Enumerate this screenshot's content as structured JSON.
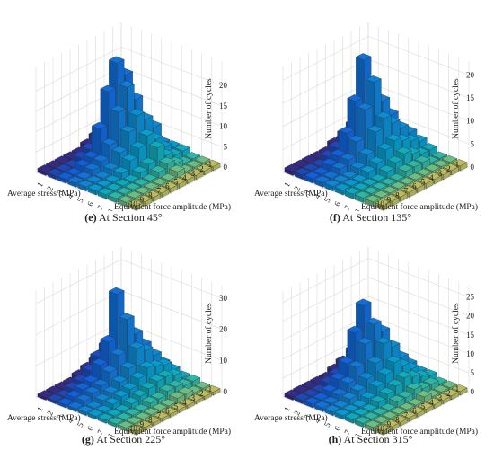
{
  "chart_data": [
    {
      "type": "bar3d",
      "panel_letter": "(e)",
      "caption": "At Section 45°",
      "zlabel": "Number of cycles",
      "xlabel": "Average stress (MPa)",
      "ylabel": "Equivalent force amplitude (MPa)",
      "x_ticks": [
        "1",
        "2",
        "3",
        "4",
        "5",
        "6",
        "7",
        "8",
        "9",
        "10"
      ],
      "y_ticks": [
        "1",
        "2",
        "3",
        "4",
        "5",
        "6",
        "7",
        "8",
        "9",
        "10"
      ],
      "z_ticks": [
        "0",
        "5",
        "10",
        "15",
        "20"
      ],
      "zlim": [
        0,
        26
      ],
      "values": [
        [
          1,
          2,
          2,
          2,
          2,
          2,
          2,
          1,
          1,
          1
        ],
        [
          1,
          3,
          6,
          3,
          7,
          3,
          2,
          1,
          1,
          1
        ],
        [
          2,
          4,
          19,
          14,
          10,
          6,
          3,
          2,
          1,
          1
        ],
        [
          3,
          6,
          23,
          18,
          12,
          8,
          6,
          3,
          2,
          1
        ],
        [
          2,
          5,
          17,
          13,
          9,
          6,
          3,
          2,
          1,
          1
        ],
        [
          1,
          3,
          9,
          6,
          5,
          4,
          2,
          1,
          1,
          1
        ],
        [
          1,
          2,
          3,
          3,
          2,
          2,
          1,
          1,
          1,
          1
        ],
        [
          1,
          1,
          2,
          2,
          1,
          1,
          1,
          1,
          1,
          1
        ],
        [
          1,
          1,
          1,
          1,
          1,
          1,
          1,
          1,
          1,
          1
        ],
        [
          1,
          1,
          1,
          1,
          1,
          1,
          1,
          1,
          1,
          1
        ]
      ]
    },
    {
      "type": "bar3d",
      "panel_letter": "(f)",
      "caption": "At Section 135°",
      "zlabel": "Number of cycles",
      "xlabel": "Average stress (MPa)",
      "ylabel": "Equivalent force amplitude (MPa)",
      "x_ticks": [
        "1",
        "2",
        "3",
        "4",
        "5",
        "6",
        "7",
        "8",
        "9",
        "10"
      ],
      "y_ticks": [
        "1",
        "2",
        "3",
        "4",
        "5",
        "6",
        "7",
        "8",
        "9",
        "10"
      ],
      "z_ticks": [
        "0",
        "5",
        "10",
        "15",
        "20"
      ],
      "zlim": [
        0,
        23
      ],
      "values": [
        [
          1,
          2,
          3,
          4,
          4,
          3,
          2,
          1,
          1,
          1
        ],
        [
          2,
          4,
          7,
          8,
          6,
          4,
          2,
          1,
          1,
          1
        ],
        [
          2,
          5,
          11,
          12,
          8,
          5,
          3,
          2,
          1,
          1
        ],
        [
          2,
          6,
          21,
          17,
          10,
          6,
          4,
          2,
          1,
          1
        ],
        [
          2,
          5,
          13,
          12,
          8,
          5,
          3,
          2,
          1,
          1
        ],
        [
          1,
          3,
          7,
          6,
          4,
          3,
          2,
          1,
          1,
          1
        ],
        [
          1,
          2,
          3,
          3,
          2,
          2,
          1,
          1,
          1,
          1
        ],
        [
          1,
          1,
          2,
          2,
          1,
          1,
          1,
          1,
          1,
          1
        ],
        [
          1,
          1,
          1,
          1,
          1,
          1,
          1,
          1,
          1,
          1
        ],
        [
          1,
          1,
          1,
          1,
          1,
          1,
          1,
          1,
          1,
          1
        ]
      ]
    },
    {
      "type": "bar3d",
      "panel_letter": "(g)",
      "caption": "At Section 225°",
      "zlabel": "Number of cycles",
      "xlabel": "Average stress (MPa)",
      "ylabel": "Equivalent force amplitude (MPa)",
      "x_ticks": [
        "1",
        "2",
        "3",
        "4",
        "5",
        "6",
        "7",
        "8",
        "9",
        "10"
      ],
      "y_ticks": [
        "1",
        "2",
        "3",
        "4",
        "5",
        "6",
        "7",
        "8",
        "9",
        "10"
      ],
      "z_ticks": [
        "0",
        "10",
        "20",
        "30"
      ],
      "zlim": [
        0,
        34
      ],
      "values": [
        [
          5,
          6,
          5,
          5,
          4,
          3,
          2,
          2,
          1,
          1
        ],
        [
          5,
          9,
          12,
          10,
          8,
          6,
          4,
          2,
          1,
          1
        ],
        [
          5,
          11,
          18,
          15,
          11,
          7,
          5,
          3,
          2,
          1
        ],
        [
          4,
          10,
          28,
          21,
          13,
          8,
          5,
          3,
          2,
          1
        ],
        [
          3,
          8,
          14,
          11,
          8,
          6,
          4,
          2,
          1,
          1
        ],
        [
          2,
          5,
          8,
          7,
          5,
          4,
          3,
          2,
          1,
          1
        ],
        [
          1,
          3,
          4,
          4,
          3,
          3,
          2,
          1,
          1,
          1
        ],
        [
          1,
          2,
          3,
          3,
          2,
          2,
          1,
          1,
          1,
          1
        ],
        [
          1,
          1,
          2,
          2,
          1,
          1,
          1,
          1,
          1,
          1
        ],
        [
          1,
          1,
          1,
          1,
          1,
          1,
          1,
          1,
          1,
          1
        ]
      ]
    },
    {
      "type": "bar3d",
      "panel_letter": "(h)",
      "caption": "At Section 315°",
      "zlabel": "Number of cycles",
      "xlabel": "Average stress (MPa)",
      "ylabel": "Equivalent force amplitude (MPa)",
      "x_ticks": [
        "1",
        "2",
        "3",
        "4",
        "5",
        "6",
        "7",
        "8",
        "9",
        "10"
      ],
      "y_ticks": [
        "1",
        "2",
        "3",
        "4",
        "5",
        "6",
        "7",
        "8",
        "9",
        "10"
      ],
      "z_ticks": [
        "0",
        "5",
        "10",
        "15",
        "20",
        "25"
      ],
      "zlim": [
        0,
        28
      ],
      "values": [
        [
          1,
          2,
          3,
          3,
          3,
          2,
          2,
          1,
          1,
          1
        ],
        [
          2,
          4,
          7,
          7,
          6,
          4,
          3,
          2,
          1,
          1
        ],
        [
          2,
          6,
          12,
          13,
          10,
          6,
          4,
          2,
          1,
          1
        ],
        [
          3,
          7,
          20,
          16,
          12,
          8,
          5,
          3,
          2,
          1
        ],
        [
          2,
          5,
          14,
          12,
          8,
          6,
          4,
          2,
          1,
          1
        ],
        [
          1,
          3,
          7,
          7,
          5,
          4,
          3,
          2,
          1,
          1
        ],
        [
          1,
          2,
          4,
          4,
          3,
          2,
          2,
          1,
          1,
          1
        ],
        [
          1,
          1,
          2,
          2,
          2,
          1,
          1,
          1,
          1,
          1
        ],
        [
          1,
          1,
          1,
          1,
          1,
          1,
          1,
          1,
          1,
          1
        ],
        [
          1,
          1,
          1,
          1,
          1,
          1,
          1,
          1,
          1,
          1
        ]
      ]
    }
  ]
}
